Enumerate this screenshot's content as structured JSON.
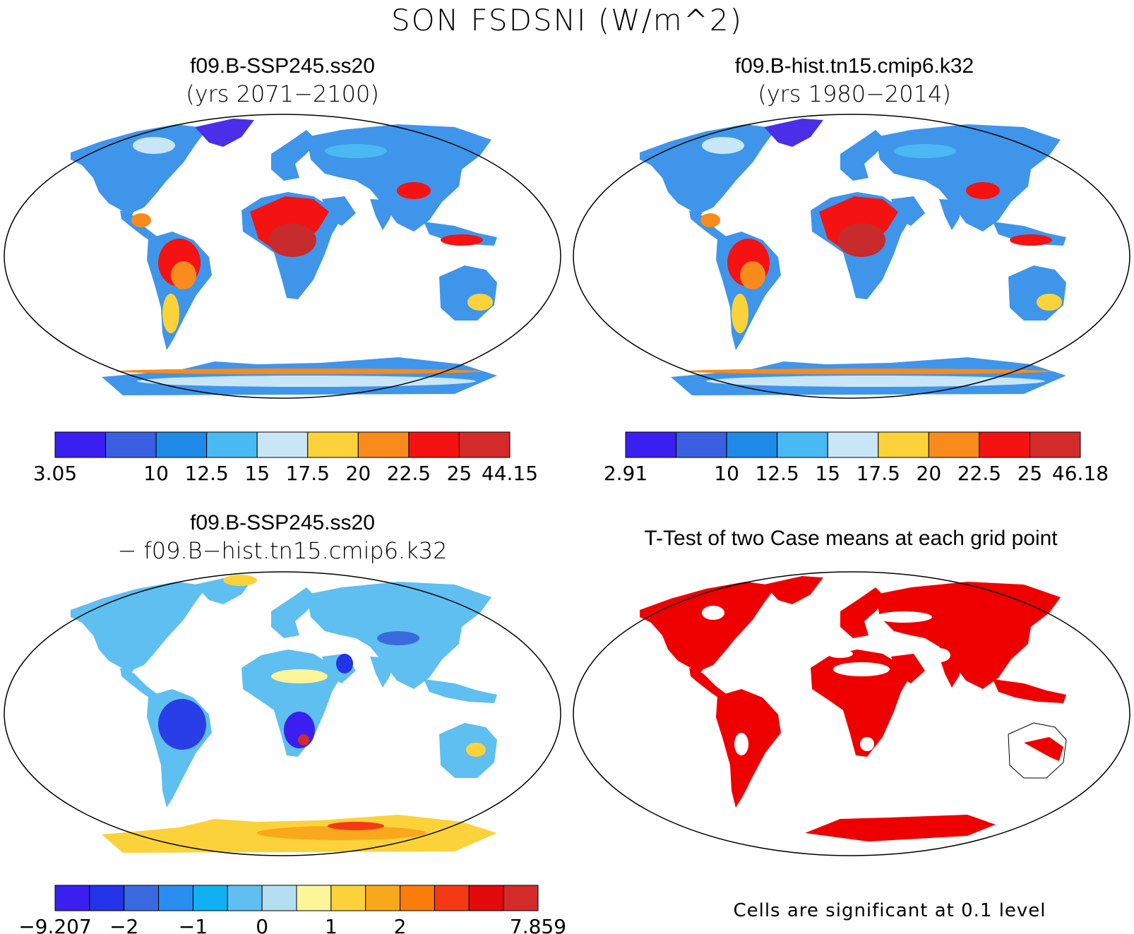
{
  "figure": {
    "title": "SON FSDSNI (W/m^2)"
  },
  "panels": [
    {
      "id": "case",
      "title": "f09.B-SSP245.ss20",
      "subtitle": "(yrs 2071−2100)",
      "colorbar": {
        "colors": [
          "#3b1ff0",
          "#3a5fe0",
          "#1f8ae8",
          "#4ab8f2",
          "#c9e6f7",
          "#fbd23a",
          "#f98a1c",
          "#f41212",
          "#d32a2a"
        ],
        "tick_labels": [
          "3.05",
          "",
          "10",
          "12.5",
          "15",
          "17.5",
          "20",
          "22.5",
          "25",
          "44.15"
        ]
      }
    },
    {
      "id": "reference",
      "title": "f09.B-hist.tn15.cmip6.k32",
      "subtitle": "(yrs 1980−2014)",
      "colorbar": {
        "colors": [
          "#3b1ff0",
          "#3a5fe0",
          "#1f8ae8",
          "#4ab8f2",
          "#c9e6f7",
          "#fbd23a",
          "#f98a1c",
          "#f41212",
          "#d32a2a"
        ],
        "tick_labels": [
          "2.91",
          "",
          "10",
          "12.5",
          "15",
          "17.5",
          "20",
          "22.5",
          "25",
          "46.18"
        ]
      }
    },
    {
      "id": "difference",
      "title": "f09.B-SSP245.ss20",
      "subtitle": "− f09.B−hist.tn15.cmip6.k32",
      "colorbar": {
        "colors": [
          "#3b1ff0",
          "#2233e8",
          "#3a6ae0",
          "#2a8ef0",
          "#0fb1f2",
          "#5fbff0",
          "#b6def2",
          "#fdf59a",
          "#fbd23a",
          "#f9a81c",
          "#f97c0c",
          "#f43a12",
          "#e20a0a",
          "#d32a2a"
        ],
        "tick_labels": [
          "−9.207",
          "",
          "−2",
          "",
          "−1",
          "",
          "0",
          "",
          "1",
          "",
          "2",
          "",
          "",
          "",
          "7.859"
        ]
      }
    },
    {
      "id": "ttest",
      "title": "T-Test of two Case means at each grid point",
      "note": "Cells are significant at 0.1 level",
      "significant_color": "#ee0000"
    }
  ]
}
